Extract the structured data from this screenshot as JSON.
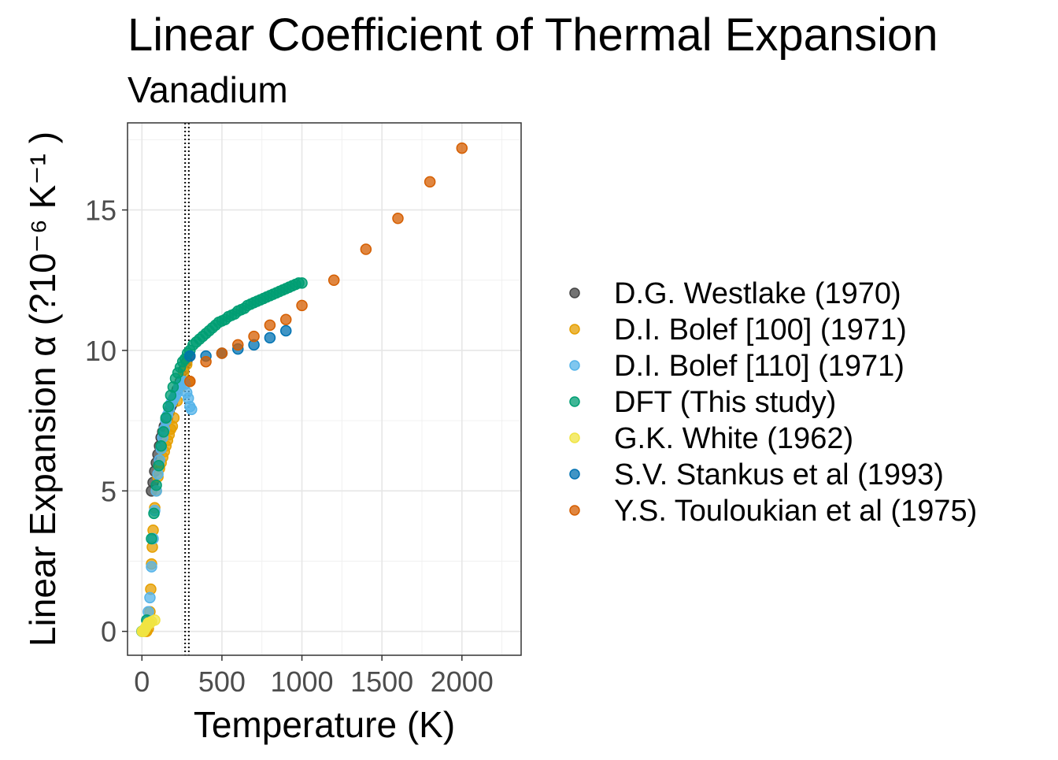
{
  "chart_data": {
    "type": "scatter",
    "title": "Linear Coefficient of Thermal Expansion",
    "subtitle": "Vanadium",
    "xlabel": "Temperature (K)",
    "ylabel": "Linear Expansion  α (?10⁻⁶ K⁻¹ )",
    "xlim": [
      -90,
      2370
    ],
    "ylim": [
      -0.85,
      18.1
    ],
    "x_ticks": [
      0,
      500,
      1000,
      1500,
      2000
    ],
    "x_tick_labels": [
      "0",
      "500",
      "1000",
      "1500",
      "2000"
    ],
    "y_ticks": [
      0,
      5,
      10,
      15
    ],
    "y_tick_labels": [
      "0",
      "5",
      "10",
      "15"
    ],
    "grid": true,
    "legend_position": "right",
    "reference_lines": [
      270,
      293
    ],
    "series": [
      {
        "name": "D.G. Westlake (1970)",
        "color": "#444444",
        "points": [
          [
            60,
            5.0
          ],
          [
            70,
            5.3
          ],
          [
            80,
            5.7
          ],
          [
            90,
            6.0
          ],
          [
            100,
            6.3
          ],
          [
            110,
            6.6
          ],
          [
            120,
            6.9
          ],
          [
            130,
            7.1
          ],
          [
            140,
            7.3
          ],
          [
            150,
            7.5
          ],
          [
            160,
            7.6
          ],
          [
            170,
            7.8
          ],
          [
            180,
            8.0
          ],
          [
            190,
            8.1
          ],
          [
            200,
            8.3
          ],
          [
            220,
            8.6
          ],
          [
            240,
            8.9
          ],
          [
            260,
            9.3
          ],
          [
            280,
            9.6
          ],
          [
            300,
            9.8
          ]
        ]
      },
      {
        "name": "D.I. Bolef [100] (1971)",
        "color": "#E69F00",
        "points": [
          [
            20,
            0.0
          ],
          [
            30,
            0.0
          ],
          [
            40,
            0.1
          ],
          [
            50,
            0.7
          ],
          [
            55,
            1.5
          ],
          [
            60,
            2.4
          ],
          [
            65,
            3.0
          ],
          [
            70,
            3.6
          ],
          [
            80,
            4.4
          ],
          [
            90,
            5.0
          ],
          [
            100,
            5.5
          ],
          [
            110,
            5.8
          ],
          [
            120,
            6.0
          ],
          [
            130,
            6.2
          ],
          [
            140,
            6.4
          ],
          [
            150,
            6.6
          ],
          [
            160,
            6.8
          ],
          [
            170,
            7.0
          ],
          [
            180,
            7.2
          ],
          [
            190,
            7.3
          ],
          [
            200,
            7.6
          ],
          [
            220,
            8.2
          ],
          [
            240,
            8.7
          ],
          [
            260,
            9.2
          ],
          [
            280,
            9.5
          ],
          [
            300,
            8.9
          ]
        ]
      },
      {
        "name": "D.I. Bolef [110] (1971)",
        "color": "#56B4E9",
        "points": [
          [
            20,
            0.1
          ],
          [
            30,
            0.4
          ],
          [
            40,
            0.7
          ],
          [
            50,
            1.2
          ],
          [
            60,
            2.3
          ],
          [
            70,
            3.3
          ],
          [
            80,
            4.3
          ],
          [
            90,
            5.0
          ],
          [
            100,
            5.6
          ],
          [
            110,
            6.1
          ],
          [
            120,
            6.5
          ],
          [
            130,
            6.9
          ],
          [
            140,
            7.2
          ],
          [
            150,
            7.5
          ],
          [
            160,
            7.7
          ],
          [
            170,
            7.9
          ],
          [
            180,
            8.1
          ],
          [
            190,
            8.2
          ],
          [
            200,
            8.3
          ],
          [
            210,
            8.4
          ],
          [
            220,
            8.5
          ],
          [
            230,
            8.7
          ],
          [
            240,
            8.8
          ],
          [
            250,
            8.9
          ],
          [
            260,
            8.9
          ],
          [
            270,
            8.8
          ],
          [
            280,
            8.5
          ],
          [
            290,
            8.3
          ],
          [
            300,
            8.0
          ],
          [
            310,
            7.9
          ]
        ]
      },
      {
        "name": "DFT (This study)",
        "color": "#009E73",
        "points": [
          [
            0,
            0.0
          ],
          [
            30,
            0.4
          ],
          [
            60,
            3.3
          ],
          [
            75,
            4.2
          ],
          [
            90,
            5.2
          ],
          [
            105,
            5.9
          ],
          [
            120,
            6.6
          ],
          [
            135,
            7.1
          ],
          [
            150,
            7.6
          ],
          [
            165,
            8.0
          ],
          [
            180,
            8.4
          ],
          [
            195,
            8.7
          ],
          [
            210,
            9.0
          ],
          [
            225,
            9.2
          ],
          [
            240,
            9.4
          ],
          [
            255,
            9.6
          ],
          [
            270,
            9.7
          ],
          [
            285,
            9.9
          ],
          [
            300,
            10.0
          ],
          [
            320,
            10.2
          ],
          [
            340,
            10.3
          ],
          [
            360,
            10.4
          ],
          [
            380,
            10.5
          ],
          [
            400,
            10.6
          ],
          [
            420,
            10.7
          ],
          [
            440,
            10.8
          ],
          [
            460,
            10.9
          ],
          [
            480,
            11.0
          ],
          [
            500,
            11.05
          ],
          [
            520,
            11.1
          ],
          [
            540,
            11.2
          ],
          [
            560,
            11.25
          ],
          [
            580,
            11.3
          ],
          [
            600,
            11.4
          ],
          [
            620,
            11.45
          ],
          [
            640,
            11.5
          ],
          [
            660,
            11.6
          ],
          [
            680,
            11.65
          ],
          [
            700,
            11.7
          ],
          [
            720,
            11.75
          ],
          [
            740,
            11.8
          ],
          [
            760,
            11.85
          ],
          [
            780,
            11.9
          ],
          [
            800,
            11.95
          ],
          [
            820,
            12.0
          ],
          [
            840,
            12.05
          ],
          [
            860,
            12.1
          ],
          [
            880,
            12.15
          ],
          [
            900,
            12.2
          ],
          [
            920,
            12.25
          ],
          [
            940,
            12.3
          ],
          [
            960,
            12.35
          ],
          [
            980,
            12.4
          ],
          [
            1000,
            12.4
          ]
        ]
      },
      {
        "name": "G.K. White (1962)",
        "color": "#F0E442",
        "points": [
          [
            2,
            0.0
          ],
          [
            5,
            0.0
          ],
          [
            10,
            0.0
          ],
          [
            15,
            0.05
          ],
          [
            20,
            0.1
          ],
          [
            25,
            0.15
          ],
          [
            30,
            0.2
          ],
          [
            40,
            0.3
          ],
          [
            50,
            0.3
          ],
          [
            60,
            0.35
          ],
          [
            80,
            0.4
          ]
        ]
      },
      {
        "name": "S.V. Stankus et al (1993)",
        "color": "#0072B2",
        "points": [
          [
            300,
            9.8
          ],
          [
            400,
            9.8
          ],
          [
            500,
            9.9
          ],
          [
            600,
            10.05
          ],
          [
            700,
            10.2
          ],
          [
            800,
            10.45
          ],
          [
            900,
            10.7
          ]
        ]
      },
      {
        "name": "Y.S. Touloukian et al (1975)",
        "color": "#D55E00",
        "points": [
          [
            300,
            8.9
          ],
          [
            400,
            9.6
          ],
          [
            500,
            9.9
          ],
          [
            600,
            10.2
          ],
          [
            700,
            10.5
          ],
          [
            800,
            10.9
          ],
          [
            900,
            11.1
          ],
          [
            1000,
            11.6
          ],
          [
            1200,
            12.5
          ],
          [
            1400,
            13.6
          ],
          [
            1600,
            14.7
          ],
          [
            1800,
            16.0
          ],
          [
            2000,
            17.2
          ]
        ]
      }
    ]
  }
}
